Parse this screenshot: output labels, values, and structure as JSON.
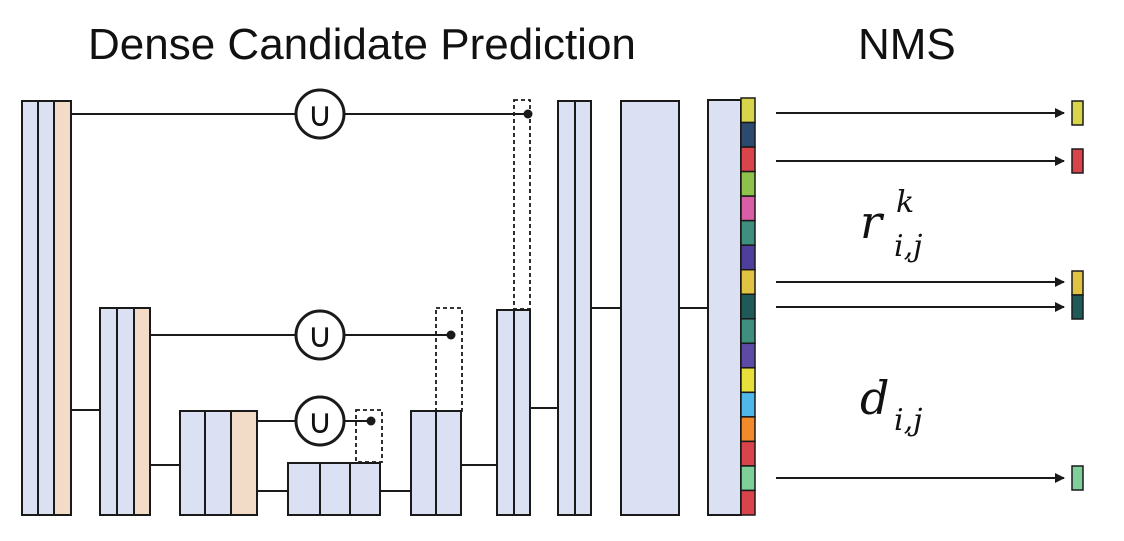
{
  "titles": {
    "left": "Dense Candidate Prediction",
    "right": "NMS"
  },
  "labels": {
    "r_base": "r",
    "r_sub": "i,j",
    "r_sup": "k",
    "d_base": "d",
    "d_sub": "i,j"
  },
  "colors": {
    "feature": "#dbe0f2",
    "skip": "#f2dcc7",
    "line": "#1a1a1a",
    "strip": [
      "#d9d54a",
      "#2b4a6e",
      "#d9434a",
      "#8ec24a",
      "#d85fa6",
      "#3f8f7f",
      "#4f3f9c",
      "#e0c340",
      "#1f5a58",
      "#3f8f7f",
      "#5b4aa6",
      "#e8e03a",
      "#4fb8e8",
      "#f08a2a",
      "#d9434a",
      "#7fcf9a",
      "#d9434a"
    ],
    "outputs": [
      "#d9d54a",
      "#d9434a",
      "#e0c340",
      "#1f5a58",
      "#7fcf9a"
    ]
  },
  "icons": {
    "union": "union-operator-icon",
    "arrow": "arrow-right-icon"
  },
  "union_symbol": "∪"
}
